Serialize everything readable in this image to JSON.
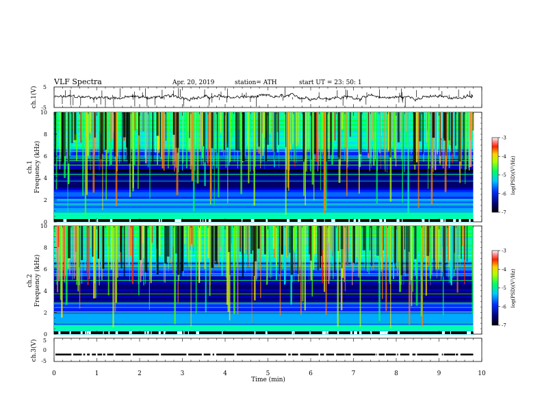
{
  "header": {
    "title": "VLF  Spectra",
    "date": "Apr. 20, 2019",
    "station": "station= ATH",
    "start": "start  UT  =    23: 50: 1"
  },
  "chart_data": [
    {
      "type": "line",
      "name": "ch1-waveform",
      "ylabel": "ch.1(V)",
      "ylim": [
        -5,
        5
      ],
      "yticks": [
        "5",
        "-5"
      ],
      "xlim": [
        0,
        10
      ],
      "trace_level": 0
    },
    {
      "type": "heatmap",
      "name": "ch1-spectrogram",
      "ylabel": "ch.1\nFrequency (kHz)",
      "ylabel_line1": "ch.1",
      "ylabel_line2": "Frequency  (kHz)",
      "ylim": [
        0,
        10
      ],
      "yticks": [
        "0",
        "2",
        "4",
        "6",
        "8",
        "10"
      ],
      "xlim": [
        0,
        9.8
      ],
      "colorbar": {
        "label": "log(PSD)(V²/Hz)",
        "range": [
          -7,
          -3
        ],
        "ticks": [
          "-3",
          "-4",
          "-5",
          "-6",
          "-7"
        ]
      }
    },
    {
      "type": "heatmap",
      "name": "ch2-spectrogram",
      "ylabel_line1": "ch.2",
      "ylabel_line2": "Frequency  (kHz)",
      "ylim": [
        0,
        10
      ],
      "yticks": [
        "0",
        "2",
        "4",
        "6",
        "8",
        "10"
      ],
      "xlim": [
        0,
        9.8
      ],
      "colorbar": {
        "label": "log(PSD)(V²/Hz)",
        "range": [
          -7,
          -3
        ],
        "ticks": [
          "-3",
          "-4",
          "-5",
          "-6",
          "-7"
        ]
      }
    },
    {
      "type": "line",
      "name": "ch3-waveform",
      "ylabel": "ch.3(V)",
      "ylim": [
        -5,
        5
      ],
      "yticks": [
        "5",
        "0",
        "-5"
      ],
      "trace_level": -2,
      "xlabel": "Time  (min)",
      "xlim": [
        0,
        10
      ],
      "xticks": [
        "0",
        "1",
        "2",
        "3",
        "4",
        "5",
        "6",
        "7",
        "8",
        "9",
        "10"
      ]
    }
  ]
}
